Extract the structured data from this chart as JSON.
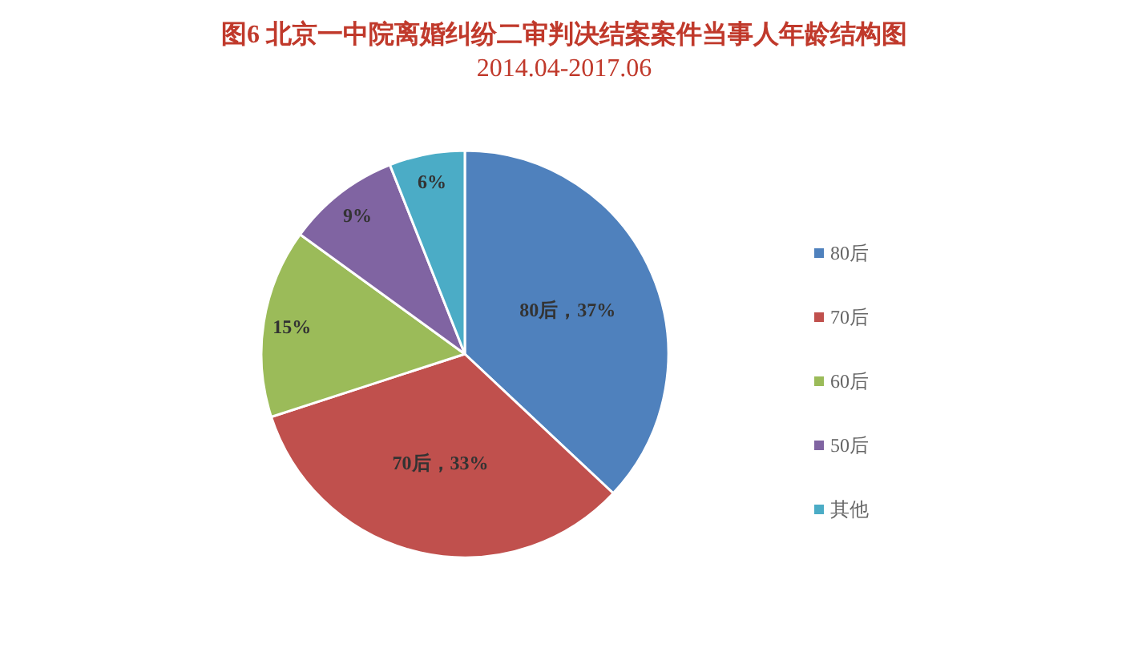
{
  "chart_data": {
    "type": "pie",
    "title": "图6 北京一中院离婚纠纷二审判决结案案件当事人年龄结构图",
    "subtitle": "2014.04-2017.06",
    "categories": [
      "80后",
      "70后",
      "60后",
      "50后",
      "其他"
    ],
    "values": [
      37,
      33,
      15,
      9,
      6
    ],
    "colors": [
      "#4f81bd",
      "#c0504d",
      "#9bbb59",
      "#8064a2",
      "#4bacc6"
    ],
    "value_labels": [
      "80后，37%",
      "70后，33%",
      "15%",
      "9%",
      "6%"
    ],
    "legend": "right"
  }
}
